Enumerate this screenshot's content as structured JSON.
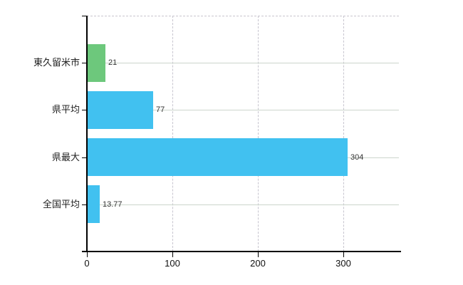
{
  "chart_data": {
    "type": "bar",
    "orientation": "horizontal",
    "title": "",
    "categories": [
      "東久留米市",
      "県平均",
      "県最大",
      "全国平均"
    ],
    "values": [
      21,
      77,
      304,
      13.77
    ],
    "value_labels": [
      "21",
      "77",
      "304",
      "13.77"
    ],
    "bar_colors": [
      "#6dc87c",
      "#41c1f0",
      "#41c1f0",
      "#41c1f0"
    ],
    "x_ticks": [
      0,
      100,
      200,
      300
    ],
    "x_tick_labels": [
      "0",
      "100",
      "200",
      "300"
    ],
    "xlim": [
      0,
      365
    ],
    "grid": "on",
    "legend": "none"
  },
  "colors": {
    "bar_green": "#6dc87c",
    "bar_blue": "#41c1f0",
    "h_gridline": "#ccd5cc",
    "v_gridline": "#c7c5cf",
    "axis": "#000000",
    "text": "#222222",
    "background": "#ffffff"
  }
}
